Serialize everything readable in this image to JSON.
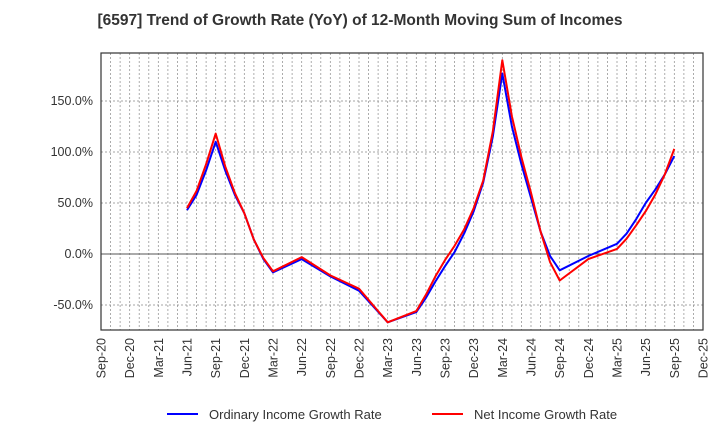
{
  "chart_data": {
    "type": "line",
    "title": "[6597]  Trend of Growth Rate (YoY) of 12-Month Moving Sum of Incomes",
    "xlabel": "",
    "ylabel": "",
    "ylim": [
      -75,
      190
    ],
    "yticks": [
      {
        "value": 150,
        "label": "150.0%"
      },
      {
        "value": 100,
        "label": "100.0%"
      },
      {
        "value": 50,
        "label": "50.0%"
      },
      {
        "value": 0,
        "label": "0.0%"
      },
      {
        "value": -50,
        "label": "-50.0%"
      }
    ],
    "xticks": [
      "Sep-20",
      "Dec-20",
      "Mar-21",
      "Jun-21",
      "Sep-21",
      "Dec-21",
      "Mar-22",
      "Jun-22",
      "Sep-22",
      "Dec-22",
      "Mar-23",
      "Jun-23",
      "Sep-23",
      "Dec-23",
      "Mar-24",
      "Jun-24",
      "Sep-24",
      "Dec-24",
      "Mar-25",
      "Jun-25",
      "Sep-25",
      "Dec-25"
    ],
    "grid": true,
    "legend_position": "bottom",
    "series": [
      {
        "name": "Ordinary Income Growth Rate",
        "color": "#0000ff",
        "points": [
          {
            "x": "Jun-21",
            "y": 43
          },
          {
            "x": "Jul-21",
            "y": 58
          },
          {
            "x": "Aug-21",
            "y": 82
          },
          {
            "x": "Sep-21",
            "y": 110
          },
          {
            "x": "Oct-21",
            "y": 82
          },
          {
            "x": "Nov-21",
            "y": 58
          },
          {
            "x": "Dec-21",
            "y": 40
          },
          {
            "x": "Jan-22",
            "y": 14
          },
          {
            "x": "Feb-22",
            "y": -5
          },
          {
            "x": "Mar-22",
            "y": -18
          },
          {
            "x": "Jun-22",
            "y": -5
          },
          {
            "x": "Sep-22",
            "y": -22
          },
          {
            "x": "Dec-22",
            "y": -36
          },
          {
            "x": "Mar-23",
            "y": -67
          },
          {
            "x": "Jun-23",
            "y": -57
          },
          {
            "x": "Jul-23",
            "y": -43
          },
          {
            "x": "Aug-23",
            "y": -27
          },
          {
            "x": "Sep-23",
            "y": -12
          },
          {
            "x": "Oct-23",
            "y": 2
          },
          {
            "x": "Nov-23",
            "y": 20
          },
          {
            "x": "Dec-23",
            "y": 42
          },
          {
            "x": "Jan-24",
            "y": 70
          },
          {
            "x": "Feb-24",
            "y": 115
          },
          {
            "x": "Mar-24",
            "y": 177
          },
          {
            "x": "Apr-24",
            "y": 125
          },
          {
            "x": "May-24",
            "y": 88
          },
          {
            "x": "Jun-24",
            "y": 55
          },
          {
            "x": "Jul-24",
            "y": 22
          },
          {
            "x": "Aug-24",
            "y": -2
          },
          {
            "x": "Sep-24",
            "y": -16
          },
          {
            "x": "Dec-24",
            "y": -2
          },
          {
            "x": "Mar-25",
            "y": 10
          },
          {
            "x": "Apr-25",
            "y": 20
          },
          {
            "x": "May-25",
            "y": 34
          },
          {
            "x": "Jun-25",
            "y": 50
          },
          {
            "x": "Jul-25",
            "y": 63
          },
          {
            "x": "Aug-25",
            "y": 78
          },
          {
            "x": "Sep-25",
            "y": 96
          }
        ]
      },
      {
        "name": "Net Income Growth Rate",
        "color": "#ff0000",
        "points": [
          {
            "x": "Jun-21",
            "y": 45
          },
          {
            "x": "Jul-21",
            "y": 62
          },
          {
            "x": "Aug-21",
            "y": 88
          },
          {
            "x": "Sep-21",
            "y": 118
          },
          {
            "x": "Oct-21",
            "y": 86
          },
          {
            "x": "Nov-21",
            "y": 60
          },
          {
            "x": "Dec-21",
            "y": 40
          },
          {
            "x": "Jan-22",
            "y": 14
          },
          {
            "x": "Feb-22",
            "y": -4
          },
          {
            "x": "Mar-22",
            "y": -17
          },
          {
            "x": "Jun-22",
            "y": -3
          },
          {
            "x": "Sep-22",
            "y": -21
          },
          {
            "x": "Dec-22",
            "y": -34
          },
          {
            "x": "Mar-23",
            "y": -67
          },
          {
            "x": "Jun-23",
            "y": -56
          },
          {
            "x": "Jul-23",
            "y": -40
          },
          {
            "x": "Aug-23",
            "y": -22
          },
          {
            "x": "Sep-23",
            "y": -6
          },
          {
            "x": "Oct-23",
            "y": 8
          },
          {
            "x": "Nov-23",
            "y": 24
          },
          {
            "x": "Dec-23",
            "y": 45
          },
          {
            "x": "Jan-24",
            "y": 72
          },
          {
            "x": "Feb-24",
            "y": 120
          },
          {
            "x": "Mar-24",
            "y": 190
          },
          {
            "x": "Apr-24",
            "y": 135
          },
          {
            "x": "May-24",
            "y": 95
          },
          {
            "x": "Jun-24",
            "y": 60
          },
          {
            "x": "Jul-24",
            "y": 22
          },
          {
            "x": "Aug-24",
            "y": -8
          },
          {
            "x": "Sep-24",
            "y": -26
          },
          {
            "x": "Dec-24",
            "y": -5
          },
          {
            "x": "Mar-25",
            "y": 5
          },
          {
            "x": "Apr-25",
            "y": 15
          },
          {
            "x": "May-25",
            "y": 28
          },
          {
            "x": "Jun-25",
            "y": 42
          },
          {
            "x": "Jul-25",
            "y": 58
          },
          {
            "x": "Aug-25",
            "y": 78
          },
          {
            "x": "Sep-25",
            "y": 103
          }
        ]
      }
    ]
  }
}
